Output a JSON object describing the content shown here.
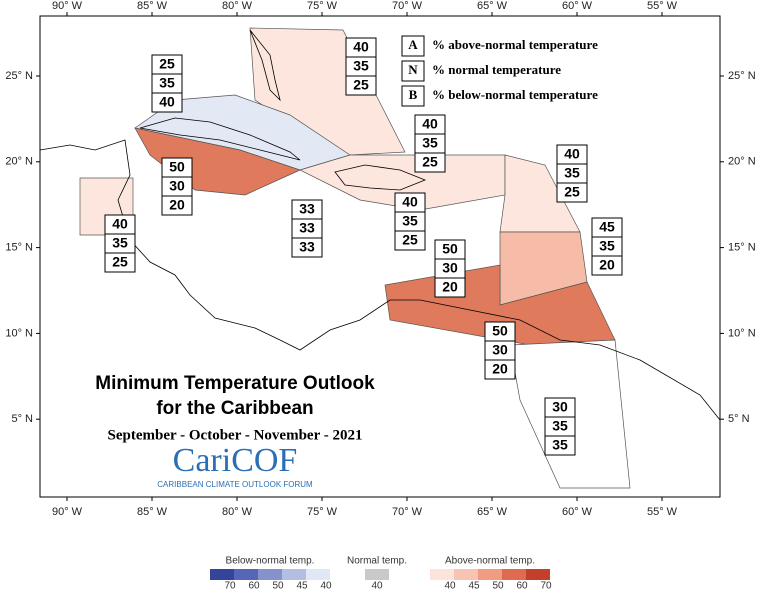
{
  "map": {
    "title_lines": [
      "Minimum Temperature Outlook",
      "for the Caribbean"
    ],
    "subtitle": "September - October - November - 2021",
    "logo": {
      "name": "CariCOF",
      "tagline": "CARIBBEAN CLIMATE OUTLOOK FORUM"
    },
    "key": [
      {
        "letter": "A",
        "text": "% above-normal temperature"
      },
      {
        "letter": "N",
        "text": "% normal temperature"
      },
      {
        "letter": "B",
        "text": "% below-normal temperature"
      }
    ],
    "lon_ticks": [
      "90° W",
      "85° W",
      "80° W",
      "75° W",
      "70° W",
      "65° W",
      "60° W",
      "55° W"
    ],
    "lat_ticks": [
      "25° N",
      "20° N",
      "15° N",
      "10° N",
      "5° N"
    ],
    "regions": [
      {
        "values": [
          40,
          35,
          25
        ]
      },
      {
        "values": [
          25,
          35,
          40
        ]
      },
      {
        "values": [
          50,
          30,
          20
        ]
      },
      {
        "values": [
          40,
          35,
          25
        ]
      },
      {
        "values": [
          40,
          35,
          25
        ]
      },
      {
        "values": [
          33,
          33,
          33
        ]
      },
      {
        "values": [
          40,
          35,
          25
        ]
      },
      {
        "values": [
          40,
          35,
          25
        ]
      },
      {
        "values": [
          45,
          35,
          20
        ]
      },
      {
        "values": [
          50,
          30,
          20
        ]
      },
      {
        "values": [
          50,
          30,
          20
        ]
      },
      {
        "values": [
          30,
          35,
          35
        ]
      }
    ],
    "legend": [
      {
        "title": "Below-normal temp.",
        "labels": [
          70,
          60,
          50,
          45,
          40
        ]
      },
      {
        "title": "Normal temp.",
        "labels": [
          40
        ]
      },
      {
        "title": "Above-normal temp.",
        "labels": [
          40,
          45,
          50,
          60,
          70
        ]
      }
    ]
  }
}
